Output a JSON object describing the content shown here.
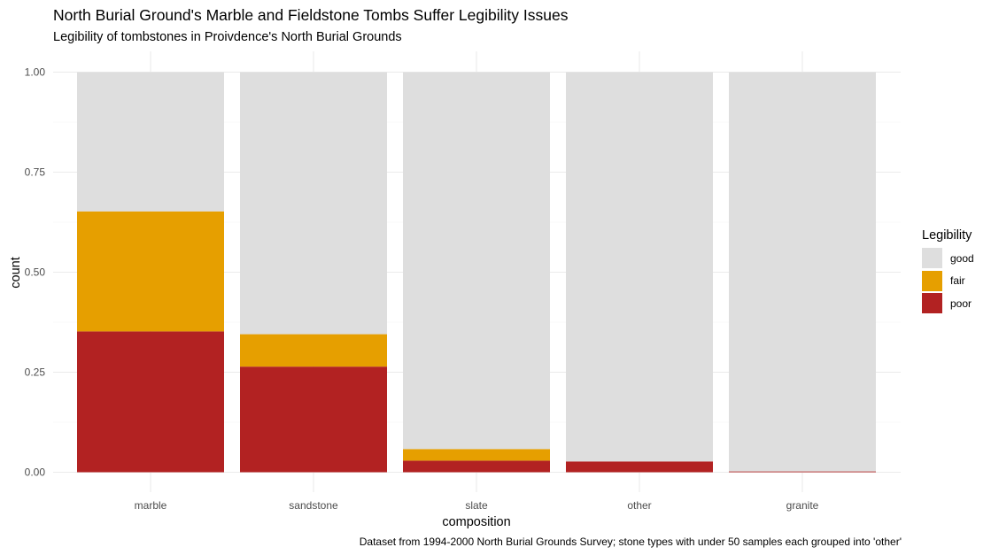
{
  "chart_data": {
    "type": "bar",
    "stacked": true,
    "title": "North Burial Ground's Marble and Fieldstone Tombs Suffer Legibility Issues",
    "subtitle": "Legibility of tombstones in Proivdence's North Burial Grounds",
    "xlabel": "composition",
    "ylabel": "count",
    "caption": "Dataset from 1994-2000 North Burial Grounds Survey; stone types with under 50 samples each grouped into 'other'",
    "categories": [
      "marble",
      "sandstone",
      "slate",
      "other",
      "granite"
    ],
    "ylim": [
      0,
      1
    ],
    "yticks": [
      0,
      0.25,
      0.5,
      0.75,
      1
    ],
    "ytick_labels": [
      "0.00",
      "0.25",
      "0.50",
      "0.75",
      "1.00"
    ],
    "legend_title": "Legibility",
    "legend_position": "right",
    "grid": true,
    "series": [
      {
        "name": "poor",
        "color": "#b22222",
        "values": [
          0.352,
          0.264,
          0.029,
          0.027,
          0.002
        ]
      },
      {
        "name": "fair",
        "color": "#e69f00",
        "values": [
          0.3,
          0.081,
          0.029,
          0.0,
          0.0
        ]
      },
      {
        "name": "good",
        "color": "#dedede",
        "values": [
          0.348,
          0.655,
          0.942,
          0.973,
          0.998
        ]
      }
    ],
    "legend_items": [
      {
        "name": "good",
        "color": "#dedede"
      },
      {
        "name": "fair",
        "color": "#e69f00"
      },
      {
        "name": "poor",
        "color": "#b22222"
      }
    ]
  }
}
